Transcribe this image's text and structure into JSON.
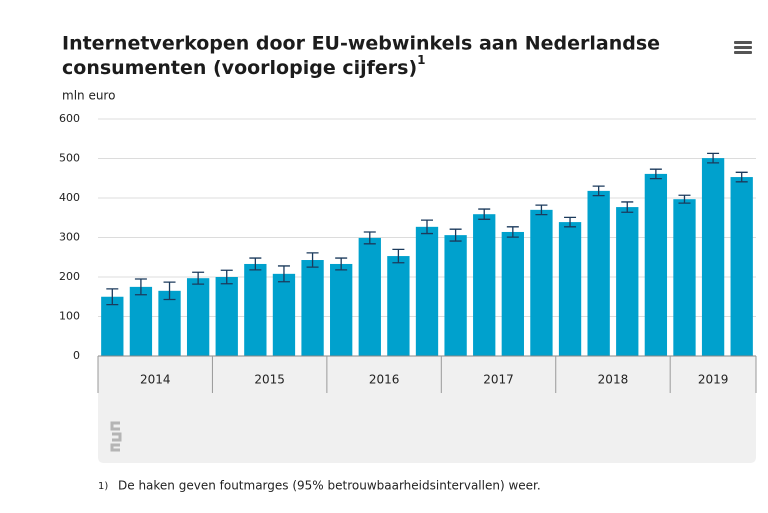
{
  "chart_data": {
    "type": "bar",
    "title": "Internetverkopen door EU-webwinkels aan Nederlandse",
    "title_line2": "consumenten (voorlopige cijfers)",
    "title_note": "1",
    "y_label": "mln euro",
    "categories": [
      null,
      null,
      null,
      null,
      null,
      null,
      null,
      null,
      null,
      null,
      null,
      null,
      null,
      null,
      null,
      null,
      null,
      null,
      null,
      null,
      null,
      null,
      null
    ],
    "values": [
      150,
      175,
      165,
      197,
      200,
      233,
      208,
      243,
      233,
      299,
      253,
      327,
      306,
      359,
      314,
      370,
      339,
      418,
      377,
      461,
      397,
      501,
      453
    ],
    "errors": [
      20,
      20,
      22,
      15,
      17,
      15,
      20,
      18,
      15,
      15,
      17,
      17,
      15,
      13,
      13,
      12,
      12,
      12,
      13,
      12,
      10,
      12,
      12
    ],
    "year_groups": [
      {
        "label": "2014",
        "size": 4
      },
      {
        "label": "2015",
        "size": 4
      },
      {
        "label": "2016",
        "size": 4
      },
      {
        "label": "2017",
        "size": 4
      },
      {
        "label": "2018",
        "size": 4
      },
      {
        "label": "2019",
        "size": 3
      }
    ],
    "color": "#00a1cd",
    "error_color": "#1b3a5c",
    "ylim": [
      0,
      600
    ],
    "yticks": [
      0,
      100,
      200,
      300,
      400,
      500,
      600
    ],
    "grid": true,
    "footnote_marker": "1)",
    "footnote": "De haken geven foutmarges (95% betrouwbaarheidsintervallen) weer."
  }
}
